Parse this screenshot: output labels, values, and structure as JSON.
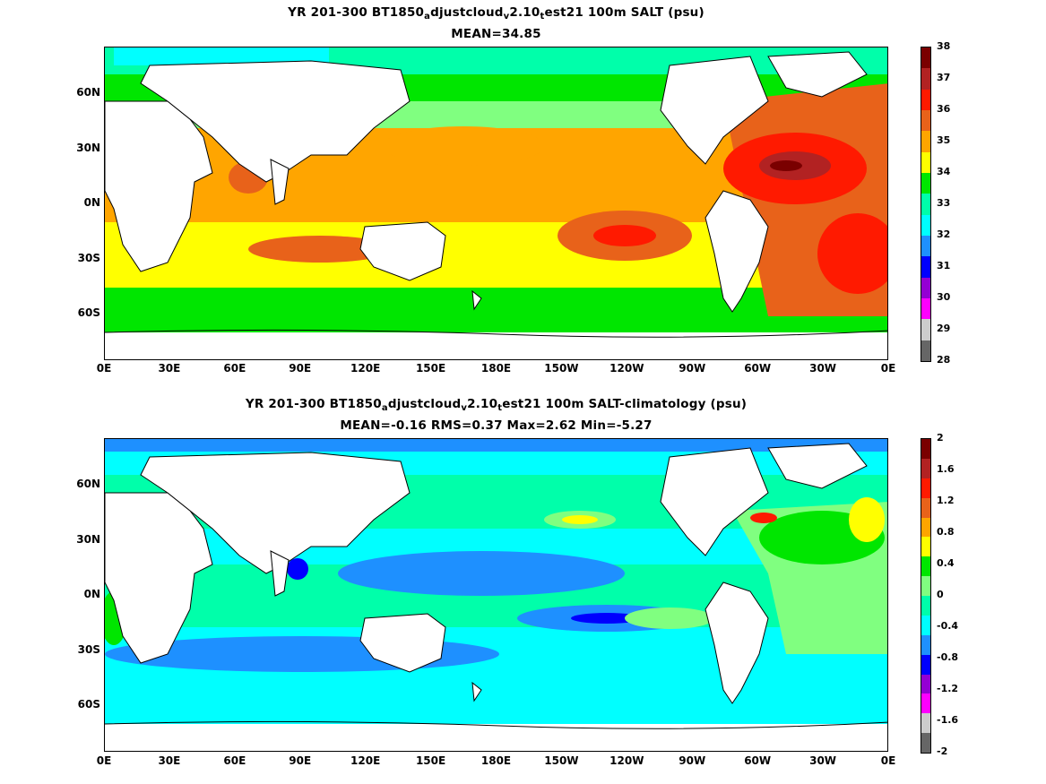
{
  "panel1": {
    "title_parts": [
      "YR 201-300 BT1850",
      "a",
      "djustcloud",
      "v",
      "2.10",
      "t",
      "est21 100m SALT (psu)"
    ],
    "subtitle": "MEAN=34.85",
    "colorbar": {
      "labels": [
        "38",
        "37",
        "36",
        "35",
        "34",
        "33",
        "32",
        "31",
        "30",
        "29",
        "28"
      ],
      "colors": [
        "#7a0000",
        "#b22222",
        "#ff1a00",
        "#e8621a",
        "#ffa500",
        "#ffff00",
        "#00e600",
        "#00ffaa",
        "#00ffff",
        "#1e90ff",
        "#0000ff",
        "#9400d3",
        "#ff00ff",
        "#cccccc",
        "#666666"
      ]
    }
  },
  "panel2": {
    "title_parts": [
      "YR 201-300 BT1850",
      "a",
      "djustcloud",
      "v",
      "2.10",
      "t",
      "est21 100m SALT-climatology (psu)"
    ],
    "subtitle": "MEAN=-0.16   RMS=0.37   Max=2.62   Min=-5.27",
    "colorbar": {
      "labels": [
        "2",
        "1.6",
        "1.2",
        "0.8",
        "0.4",
        "0",
        "-0.4",
        "-0.8",
        "-1.2",
        "-1.6",
        "-2"
      ],
      "colors": [
        "#7a0000",
        "#b22222",
        "#ff1a00",
        "#e8621a",
        "#ffa500",
        "#ffff00",
        "#00e600",
        "#80ff80",
        "#00ffaa",
        "#00ffff",
        "#1e90ff",
        "#0000ff",
        "#9400d3",
        "#ff00ff",
        "#cccccc",
        "#666666"
      ]
    }
  },
  "axes": {
    "x_ticks": [
      "0E",
      "30E",
      "60E",
      "90E",
      "120E",
      "150E",
      "180E",
      "150W",
      "120W",
      "90W",
      "60W",
      "30W",
      "0E"
    ],
    "y_ticks": [
      "60N",
      "30N",
      "0N",
      "30S",
      "60S"
    ]
  }
}
